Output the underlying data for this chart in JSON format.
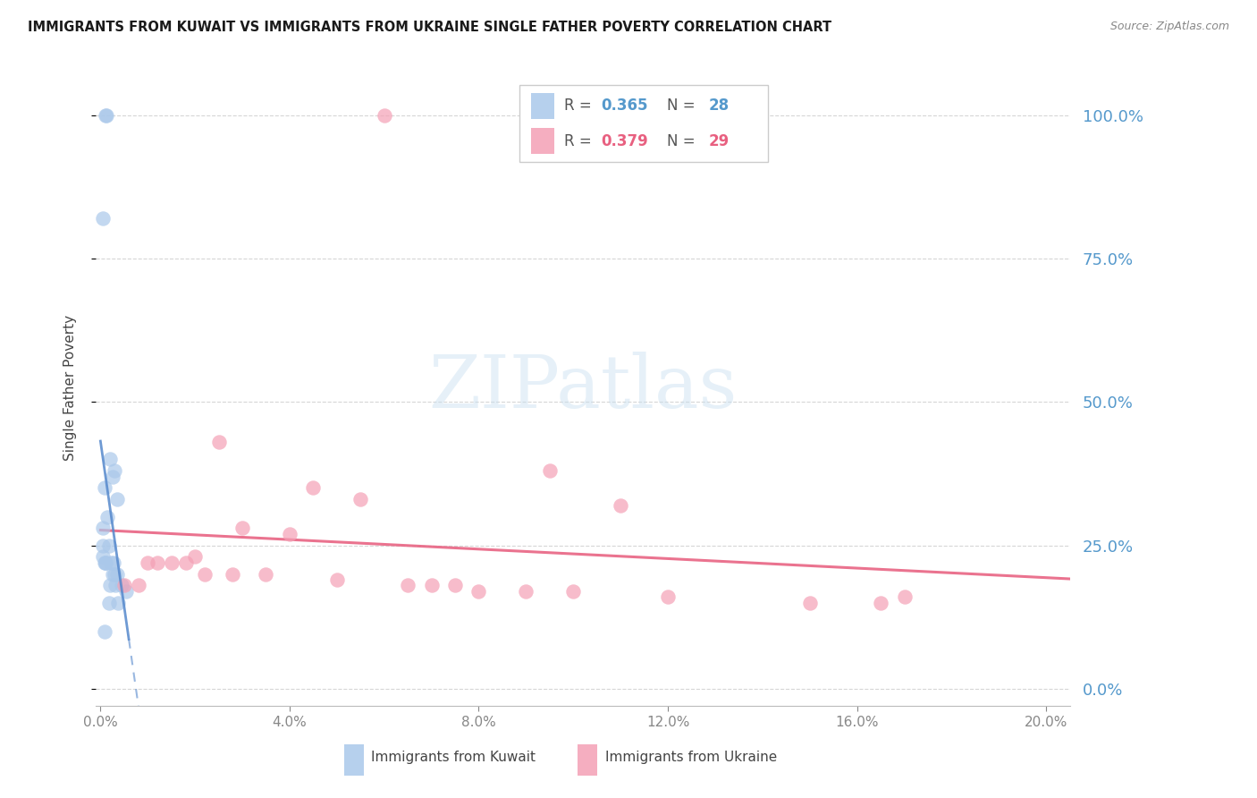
{
  "title": "IMMIGRANTS FROM KUWAIT VS IMMIGRANTS FROM UKRAINE SINGLE FATHER POVERTY CORRELATION CHART",
  "source": "Source: ZipAtlas.com",
  "ylabel": "Single Father Poverty",
  "legend_label1": "Immigrants from Kuwait",
  "legend_label2": "Immigrants from Ukraine",
  "r1_val": "0.365",
  "n1_val": "28",
  "r2_val": "0.379",
  "n2_val": "29",
  "color_kuwait": "#aac8ea",
  "color_ukraine": "#f4a0b5",
  "trendline_kuwait_color": "#5588cc",
  "trendline_ukraine_color": "#e86080",
  "right_axis_color": "#5599cc",
  "xlim_min": -0.001,
  "xlim_max": 0.205,
  "ylim_min": -0.03,
  "ylim_max": 1.08,
  "kuwait_x": [
    0.001,
    0.0012,
    0.0005,
    0.002,
    0.003,
    0.0025,
    0.0008,
    0.0035,
    0.0015,
    0.0005,
    0.0005,
    0.0005,
    0.001,
    0.0008,
    0.0018,
    0.0022,
    0.0028,
    0.003,
    0.0035,
    0.0045,
    0.0055,
    0.002,
    0.0018,
    0.0025,
    0.0032,
    0.0038,
    0.001,
    0.0008
  ],
  "kuwait_y": [
    1.0,
    1.0,
    0.82,
    0.4,
    0.38,
    0.37,
    0.35,
    0.33,
    0.3,
    0.28,
    0.25,
    0.23,
    0.22,
    0.22,
    0.25,
    0.22,
    0.22,
    0.2,
    0.2,
    0.18,
    0.17,
    0.18,
    0.15,
    0.2,
    0.18,
    0.15,
    0.22,
    0.1
  ],
  "ukraine_x": [
    0.06,
    0.025,
    0.045,
    0.055,
    0.03,
    0.04,
    0.02,
    0.01,
    0.015,
    0.012,
    0.018,
    0.022,
    0.028,
    0.035,
    0.05,
    0.075,
    0.065,
    0.07,
    0.08,
    0.09,
    0.1,
    0.12,
    0.15,
    0.165,
    0.005,
    0.008,
    0.17,
    0.095,
    0.11
  ],
  "ukraine_y": [
    1.0,
    0.43,
    0.35,
    0.33,
    0.28,
    0.27,
    0.23,
    0.22,
    0.22,
    0.22,
    0.22,
    0.2,
    0.2,
    0.2,
    0.19,
    0.18,
    0.18,
    0.18,
    0.17,
    0.17,
    0.17,
    0.16,
    0.15,
    0.15,
    0.18,
    0.18,
    0.16,
    0.38,
    0.32
  ],
  "watermark_text": "ZIPatlas",
  "grid_color": "#cccccc",
  "background_color": "#ffffff"
}
